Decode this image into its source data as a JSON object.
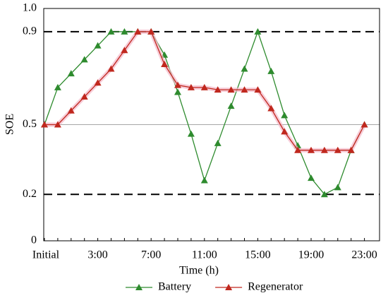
{
  "chart_data": {
    "type": "line",
    "xlabel": "Time (h)",
    "ylabel": "SOE",
    "categories": [
      "Initial",
      null,
      null,
      null,
      "3:00",
      null,
      null,
      null,
      "7:00",
      null,
      null,
      null,
      "11:00",
      null,
      null,
      null,
      "15:00",
      null,
      null,
      null,
      "19:00",
      null,
      null,
      null,
      "23:00"
    ],
    "series": [
      {
        "name": "Battery",
        "color": "#2e8b2e",
        "values": [
          0.5,
          0.66,
          0.72,
          0.78,
          0.84,
          0.9,
          0.9,
          0.9,
          0.9,
          0.8,
          0.64,
          0.46,
          0.26,
          0.42,
          0.58,
          0.74,
          0.9,
          0.73,
          0.54,
          0.41,
          0.27,
          0.2,
          0.23,
          0.39,
          0.5
        ]
      },
      {
        "name": "Regenerator",
        "color": "#c0281e",
        "values": [
          0.5,
          0.5,
          0.56,
          0.62,
          0.68,
          0.74,
          0.82,
          0.9,
          0.9,
          0.76,
          0.67,
          0.66,
          0.66,
          0.65,
          0.65,
          0.65,
          0.65,
          0.57,
          0.47,
          0.39,
          0.39,
          0.39,
          0.39,
          0.39,
          0.5
        ]
      }
    ],
    "ylim": [
      0,
      1
    ],
    "yticks": [
      0,
      0.2,
      0.5,
      0.9,
      {
        "value": 1,
        "label": "1.0"
      }
    ],
    "hlines": [
      {
        "value": 0.9,
        "dashed": true
      },
      {
        "value": 0.5,
        "dashed": false
      },
      {
        "value": 0.2,
        "dashed": true
      }
    ],
    "legend": "bottom"
  }
}
